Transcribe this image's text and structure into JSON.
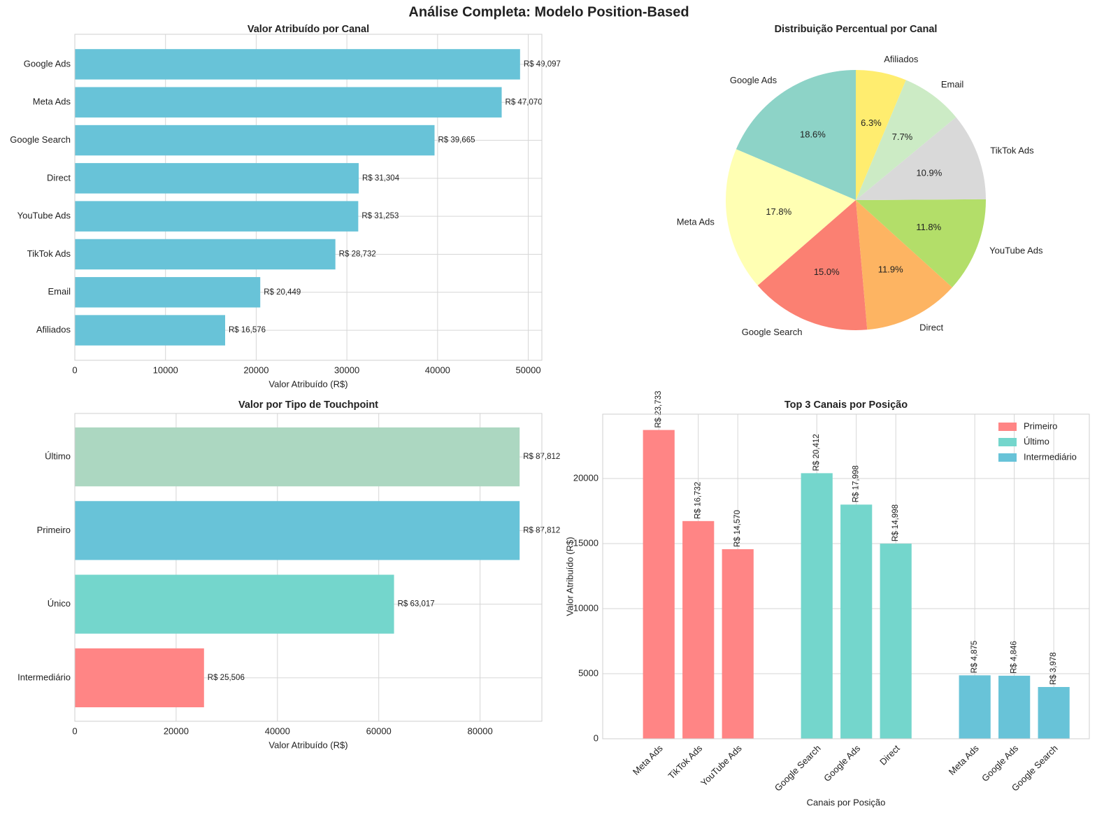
{
  "title": "Análise Completa: Modelo Position-Based",
  "chart_data": [
    {
      "type": "hbar",
      "title": "Valor Atribuído por Canal",
      "xlabel": "Valor Atribuído (R$)",
      "categories": [
        "Google Ads",
        "Meta Ads",
        "Google Search",
        "Direct",
        "YouTube Ads",
        "TikTok Ads",
        "Email",
        "Afiliados"
      ],
      "values": [
        49097,
        47070,
        39665,
        31304,
        31253,
        28732,
        20449,
        16576
      ],
      "value_labels": [
        "R$ 49,097",
        "R$ 47,070",
        "R$ 39,665",
        "R$ 31,304",
        "R$ 31,253",
        "R$ 28,732",
        "R$ 20,449",
        "R$ 16,576"
      ],
      "color": "#68c3d8",
      "xlim": [
        0,
        51500
      ],
      "xticks": [
        0,
        10000,
        20000,
        30000,
        40000,
        50000
      ],
      "grid": true
    },
    {
      "type": "pie",
      "title": "Distribuição Percentual por Canal",
      "categories": [
        "Google Ads",
        "Meta Ads",
        "Google Search",
        "Direct",
        "YouTube Ads",
        "TikTok Ads",
        "Email",
        "Afiliados"
      ],
      "values": [
        18.6,
        17.8,
        15.0,
        11.9,
        11.8,
        10.9,
        7.7,
        6.3
      ],
      "value_labels": [
        "18.6%",
        "17.8%",
        "15.0%",
        "11.9%",
        "11.8%",
        "10.9%",
        "7.7%",
        "6.3%"
      ],
      "colors": [
        "#8dd3c7",
        "#ffffb3",
        "#fb8072",
        "#fdb462",
        "#b3de69",
        "#d9d9d9",
        "#ccebc5",
        "#ffed6f"
      ]
    },
    {
      "type": "hbar",
      "title": "Valor por Tipo de Touchpoint",
      "xlabel": "Valor Atribuído (R$)",
      "categories": [
        "Último",
        "Primeiro",
        "Único",
        "Intermediário"
      ],
      "values": [
        87812,
        87812,
        63017,
        25506
      ],
      "value_labels": [
        "R$ 87,812",
        "R$ 87,812",
        "R$ 63,017",
        "R$ 25,506"
      ],
      "colors": [
        "#acd7c1",
        "#68c3d8",
        "#74d6cc",
        "#ff8585"
      ],
      "xlim": [
        0,
        92200
      ],
      "xticks": [
        0,
        20000,
        40000,
        60000,
        80000
      ],
      "grid": true
    },
    {
      "type": "grouped_bar",
      "title": "Top 3 Canais por Posição",
      "xlabel": "Canais por Posição",
      "ylabel": "Valor Atribuído (R$)",
      "series": [
        {
          "name": "Primeiro",
          "color": "#ff8585",
          "categories": [
            "Meta Ads",
            "TikTok Ads",
            "YouTube Ads"
          ],
          "values": [
            23733,
            16732,
            14570
          ],
          "value_labels": [
            "R$ 23,733",
            "R$ 16,732",
            "R$ 14,570"
          ]
        },
        {
          "name": "Último",
          "color": "#74d6cc",
          "categories": [
            "Google Search",
            "Google Ads",
            "Direct"
          ],
          "values": [
            20412,
            17998,
            14998
          ],
          "value_labels": [
            "R$ 20,412",
            "R$ 17,998",
            "R$ 14,998"
          ]
        },
        {
          "name": "Intermediário",
          "color": "#68c3d8",
          "categories": [
            "Meta Ads",
            "Google Ads",
            "Google Search"
          ],
          "values": [
            4875,
            4846,
            3978
          ],
          "value_labels": [
            "R$ 4,875",
            "R$ 4,846",
            "R$ 3,978"
          ]
        }
      ],
      "ylim": [
        0,
        24950
      ],
      "yticks": [
        0,
        5000,
        10000,
        15000,
        20000
      ],
      "grid": true,
      "legend": "upper right"
    }
  ]
}
